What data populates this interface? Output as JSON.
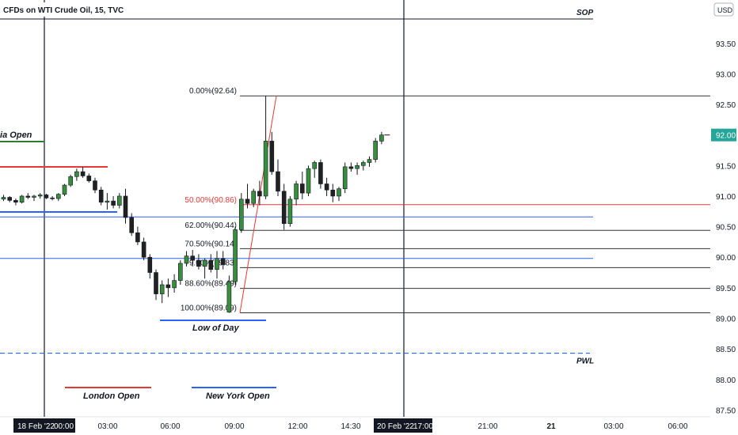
{
  "header": {
    "symbol_title": "CFDs on WTI Crude Oil, 15, TVC",
    "currency": "USD"
  },
  "price_axis": {
    "labels": [
      "93.50",
      "93.00",
      "92.50",
      "92.00",
      "91.50",
      "91.00",
      "90.50",
      "90.00",
      "89.50",
      "89.00",
      "88.50",
      "88.00",
      "87.50"
    ],
    "current_price": "92.00",
    "current_price_color": "#26a69a"
  },
  "time_axis": {
    "labels": [
      "03:00",
      "06:00",
      "09:00",
      "12:00",
      "14:30",
      "17:00",
      "21:00",
      "21",
      "03:00",
      "06:00"
    ],
    "highlighted": [
      "18 Feb '22",
      "00:00",
      "20 Feb '22"
    ]
  },
  "chart_data": {
    "type": "candlestick",
    "title": "CFDs on WTI Crude Oil, 15, TVC",
    "ylim": [
      87.35,
      93.95
    ],
    "candles": [
      [
        90.95,
        91.02,
        90.92,
        90.98
      ],
      [
        90.98,
        91.0,
        90.9,
        90.93
      ],
      [
        90.93,
        90.96,
        90.85,
        90.9
      ],
      [
        90.9,
        91.02,
        90.88,
        91.0
      ],
      [
        91.0,
        91.05,
        90.95,
        90.98
      ],
      [
        90.98,
        91.02,
        90.92,
        91.0
      ],
      [
        91.0,
        91.05,
        90.96,
        91.02
      ],
      [
        91.02,
        91.04,
        90.95,
        90.97
      ],
      [
        90.97,
        91.0,
        90.93,
        90.96
      ],
      [
        90.96,
        91.05,
        90.92,
        91.03
      ],
      [
        91.03,
        91.2,
        91.0,
        91.18
      ],
      [
        91.18,
        91.35,
        91.15,
        91.32
      ],
      [
        91.32,
        91.45,
        91.25,
        91.4
      ],
      [
        91.4,
        91.48,
        91.3,
        91.33
      ],
      [
        91.33,
        91.37,
        91.22,
        91.25
      ],
      [
        91.25,
        91.3,
        91.05,
        91.1
      ],
      [
        91.1,
        91.15,
        90.85,
        90.9
      ],
      [
        90.9,
        91.05,
        90.78,
        90.92
      ],
      [
        90.92,
        91.0,
        90.8,
        90.85
      ],
      [
        90.85,
        91.05,
        90.8,
        91.0
      ],
      [
        91.0,
        91.12,
        90.55,
        90.65
      ],
      [
        90.65,
        90.72,
        90.35,
        90.4
      ],
      [
        90.4,
        90.5,
        90.2,
        90.25
      ],
      [
        90.25,
        90.32,
        89.95,
        90.0
      ],
      [
        90.0,
        90.05,
        89.65,
        89.75
      ],
      [
        89.75,
        89.8,
        89.3,
        89.4
      ],
      [
        89.4,
        89.62,
        89.25,
        89.55
      ],
      [
        89.55,
        89.65,
        89.35,
        89.5
      ],
      [
        89.5,
        89.72,
        89.42,
        89.62
      ],
      [
        89.62,
        89.95,
        89.55,
        89.9
      ],
      [
        89.9,
        90.1,
        89.85,
        90.02
      ],
      [
        90.02,
        90.12,
        89.85,
        89.95
      ],
      [
        89.95,
        90.05,
        89.8,
        89.85
      ],
      [
        89.85,
        89.98,
        89.65,
        89.95
      ],
      [
        89.95,
        90.05,
        89.75,
        89.8
      ],
      [
        89.8,
        90.1,
        89.65,
        89.98
      ],
      [
        89.98,
        90.1,
        89.8,
        89.88
      ],
      [
        89.1,
        89.7,
        89.09,
        89.6
      ],
      [
        89.6,
        90.5,
        89.55,
        90.45
      ],
      [
        90.45,
        91.05,
        90.4,
        90.95
      ],
      [
        90.95,
        91.2,
        90.8,
        90.88
      ],
      [
        90.88,
        91.12,
        90.82,
        91.08
      ],
      [
        91.08,
        91.25,
        90.85,
        91.0
      ],
      [
        91.0,
        92.64,
        90.95,
        91.9
      ],
      [
        91.9,
        92.05,
        91.35,
        91.4
      ],
      [
        91.4,
        91.6,
        91.0,
        91.08
      ],
      [
        91.08,
        91.2,
        90.45,
        90.55
      ],
      [
        90.55,
        91.0,
        90.5,
        90.95
      ],
      [
        90.95,
        91.25,
        90.85,
        91.2
      ],
      [
        91.2,
        91.4,
        90.95,
        91.05
      ],
      [
        91.05,
        91.5,
        91.0,
        91.45
      ],
      [
        91.45,
        91.58,
        91.3,
        91.55
      ],
      [
        91.55,
        91.6,
        91.12,
        91.2
      ],
      [
        91.2,
        91.3,
        91.0,
        91.1
      ],
      [
        91.1,
        91.2,
        90.9,
        91.0
      ],
      [
        91.0,
        91.15,
        90.92,
        91.12
      ],
      [
        91.12,
        91.55,
        91.05,
        91.48
      ],
      [
        91.48,
        91.55,
        91.4,
        91.45
      ],
      [
        91.45,
        91.55,
        91.35,
        91.5
      ],
      [
        91.5,
        91.58,
        91.42,
        91.55
      ],
      [
        91.55,
        91.65,
        91.48,
        91.6
      ],
      [
        91.6,
        91.95,
        91.55,
        91.9
      ],
      [
        91.9,
        92.05,
        91.85,
        92.0
      ]
    ],
    "fib_levels": [
      {
        "label": "0.00%(92.64)",
        "price": 92.64,
        "color": "#333333"
      },
      {
        "label": "50.00%(90.86)",
        "price": 90.86,
        "color": "#e53935"
      },
      {
        "label": "62.00%(90.44)",
        "price": 90.44,
        "color": "#333333"
      },
      {
        "label": "70.50%(90.14)",
        "price": 90.14,
        "color": "#333333"
      },
      {
        "label": "79.00%(89.83)",
        "price": 89.83,
        "color": "#333333"
      },
      {
        "label": "88.60%(89.49)",
        "price": 89.49,
        "color": "#333333"
      },
      {
        "label": "100.00%(89.09)",
        "price": 89.09,
        "color": "#333333"
      }
    ],
    "colors": {
      "up": "#388e3c",
      "down": "#212121"
    }
  },
  "annotations": {
    "sop": "SOP",
    "pwl": "PWL",
    "low_of_day": "Low of Day",
    "london_open": "London Open",
    "new_york_open": "New York Open",
    "asia_open": "Asia Open"
  }
}
